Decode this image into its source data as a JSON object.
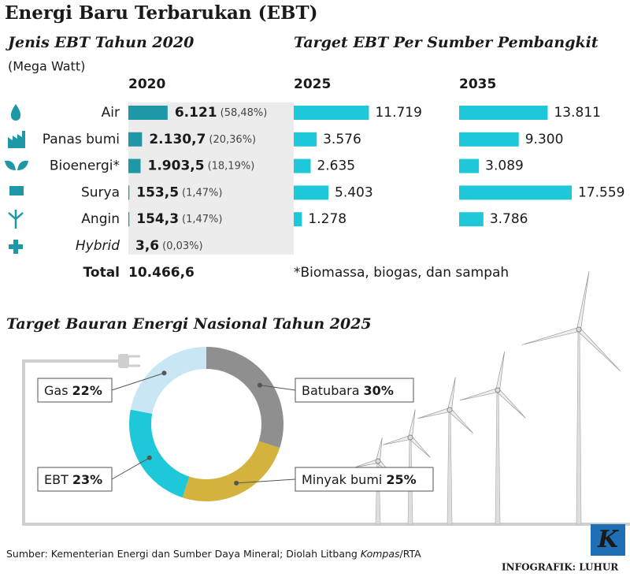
{
  "title": "Energi Baru Terbarukan (EBT)",
  "footnote": "*Biomassa, biogas, dan sampah",
  "source": [
    "Sumber: Kementerian Energi dan Sumber Daya Mineral; Diolah Litbang ",
    "Kompas",
    "/RTA"
  ],
  "credit": "INFOGRAFIK: LUHUR",
  "logo": "K",
  "chart_data": [
    {
      "type": "bar",
      "title": "Jenis EBT Tahun 2020",
      "unit": "(Mega Watt)",
      "target_title": "Target EBT Per Sumber Pembangkit",
      "categories": [
        "Air",
        "Panas bumi",
        "Bioenergi*",
        "Surya",
        "Angin",
        "Hybrid"
      ],
      "series": [
        {
          "name": "2020",
          "color": "#1e97a6",
          "values": [
            6121,
            2130.7,
            1903.5,
            153.5,
            154.3,
            3.6
          ],
          "value_labels": [
            "6.121",
            "2.130,7",
            "1.903,5",
            "153,5",
            "154,3",
            "3,6"
          ],
          "shares": [
            58.48,
            20.36,
            18.19,
            1.47,
            1.47,
            0.03
          ],
          "share_labels": [
            "(58,48%)",
            "(20,36%)",
            "(18,19%)",
            "(1,47%)",
            "(1,47%)",
            "(0,03%)"
          ]
        },
        {
          "name": "2025",
          "color": "#1ec8d8",
          "values": [
            11719,
            3576,
            2635,
            5403,
            1278,
            null
          ],
          "value_labels": [
            "11.719",
            "3.576",
            "2.635",
            "5.403",
            "1.278",
            null
          ]
        },
        {
          "name": "2035",
          "color": "#1ec8d8",
          "values": [
            13811,
            9300,
            3089,
            17559,
            3786,
            null
          ],
          "value_labels": [
            "13.811",
            "9.300",
            "3.089",
            "17.559",
            "3.786",
            null
          ]
        }
      ],
      "total": {
        "label": "Total",
        "value": 10466.6,
        "value_label": "10.466,6"
      }
    },
    {
      "type": "donut",
      "title": "Target Bauran Energi Nasional Tahun 2025",
      "categories": [
        "Batubara",
        "Minyak bumi",
        "EBT",
        "Gas"
      ],
      "values": [
        30,
        25,
        23,
        22
      ],
      "value_labels": [
        "30%",
        "25%",
        "23%",
        "22%"
      ],
      "colors": [
        "#8f8f8f",
        "#d4b23e",
        "#1ec8d8",
        "#c9e6f5"
      ]
    }
  ]
}
